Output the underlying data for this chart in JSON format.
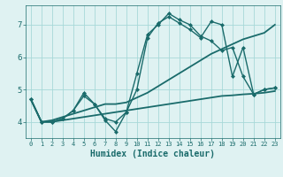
{
  "title": "",
  "xlabel": "Humidex (Indice chaleur)",
  "ylabel": "",
  "background_color": "#dff2f2",
  "grid_color": "#a8d8d8",
  "line_color": "#1a6b6b",
  "xlim": [
    -0.5,
    23.5
  ],
  "ylim": [
    3.5,
    7.6
  ],
  "yticks": [
    4,
    5,
    6,
    7
  ],
  "xticks": [
    0,
    1,
    2,
    3,
    4,
    5,
    6,
    7,
    8,
    9,
    10,
    11,
    12,
    13,
    14,
    15,
    16,
    17,
    18,
    19,
    20,
    21,
    22,
    23
  ],
  "series": [
    {
      "x": [
        0,
        1,
        2,
        3,
        4,
        5,
        6,
        7,
        8,
        9,
        10,
        11,
        12,
        13,
        14,
        15,
        16,
        17,
        18,
        19,
        20,
        21,
        22,
        23
      ],
      "y": [
        4.7,
        4.0,
        4.0,
        4.1,
        4.35,
        4.8,
        4.55,
        4.05,
        3.7,
        4.3,
        5.5,
        6.7,
        7.0,
        7.35,
        7.15,
        7.0,
        6.65,
        6.5,
        6.2,
        6.3,
        5.4,
        4.85,
        5.0,
        5.05
      ],
      "marker": "D",
      "markersize": 2.0,
      "linewidth": 1.0
    },
    {
      "x": [
        0,
        1,
        2,
        3,
        4,
        5,
        6,
        7,
        8,
        9,
        10,
        11,
        12,
        13,
        14,
        15,
        16,
        17,
        18,
        19,
        20,
        21,
        22,
        23
      ],
      "y": [
        4.7,
        4.0,
        4.0,
        4.1,
        4.35,
        4.9,
        4.55,
        4.1,
        4.0,
        4.3,
        5.0,
        6.6,
        7.05,
        7.25,
        7.05,
        6.85,
        6.6,
        7.1,
        7.0,
        5.4,
        6.3,
        4.85,
        5.0,
        5.05
      ],
      "marker": "D",
      "markersize": 2.0,
      "linewidth": 1.0
    },
    {
      "x": [
        0,
        1,
        2,
        3,
        4,
        5,
        6,
        7,
        8,
        9,
        10,
        11,
        12,
        13,
        14,
        15,
        16,
        17,
        18,
        19,
        20,
        21,
        22,
        23
      ],
      "y": [
        4.7,
        4.0,
        4.05,
        4.15,
        4.25,
        4.35,
        4.45,
        4.55,
        4.55,
        4.6,
        4.75,
        4.9,
        5.1,
        5.3,
        5.5,
        5.7,
        5.9,
        6.1,
        6.25,
        6.4,
        6.55,
        6.65,
        6.75,
        7.0
      ],
      "marker": null,
      "markersize": 0,
      "linewidth": 1.3
    },
    {
      "x": [
        0,
        1,
        2,
        3,
        4,
        5,
        6,
        7,
        8,
        9,
        10,
        11,
        12,
        13,
        14,
        15,
        16,
        17,
        18,
        19,
        20,
        21,
        22,
        23
      ],
      "y": [
        4.7,
        4.0,
        4.0,
        4.05,
        4.1,
        4.15,
        4.2,
        4.25,
        4.3,
        4.35,
        4.4,
        4.45,
        4.5,
        4.55,
        4.6,
        4.65,
        4.7,
        4.75,
        4.8,
        4.82,
        4.85,
        4.87,
        4.9,
        4.95
      ],
      "marker": null,
      "markersize": 0,
      "linewidth": 1.3
    }
  ]
}
